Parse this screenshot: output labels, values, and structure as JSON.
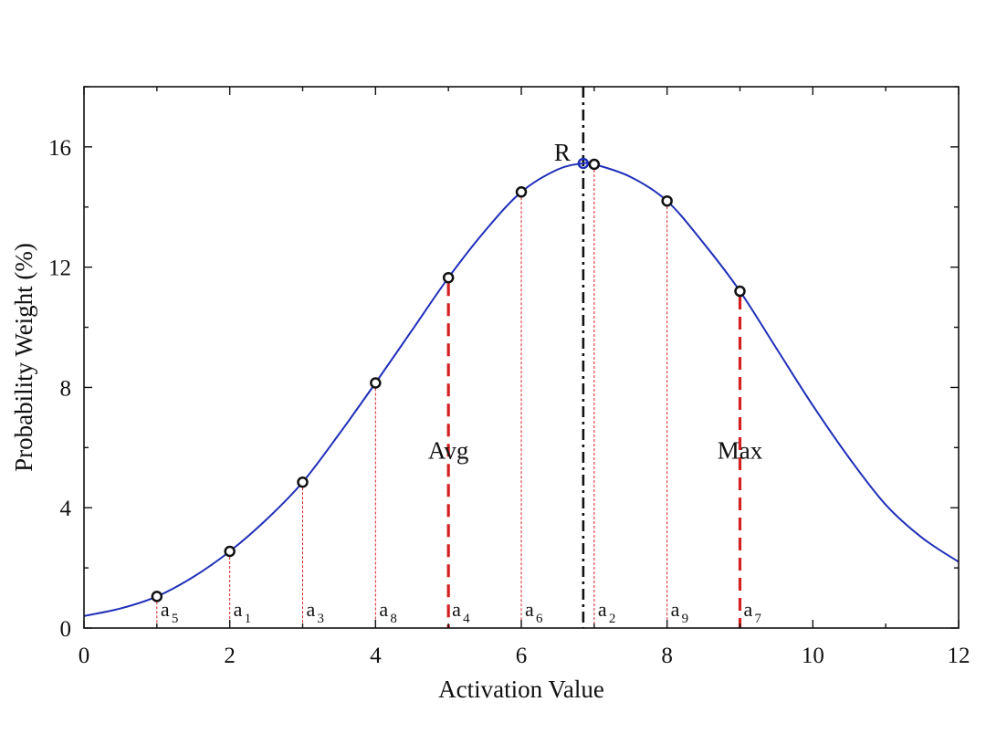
{
  "chart_data": {
    "type": "line",
    "title": "",
    "xlabel": "Activation Value",
    "ylabel": "Probability Weight (%)",
    "xlim": [
      0,
      12
    ],
    "ylim": [
      0,
      18
    ],
    "x_ticks": [
      "0",
      "2",
      "4",
      "6",
      "8",
      "10",
      "12"
    ],
    "y_ticks": [
      "0",
      "4",
      "8",
      "12",
      "16"
    ],
    "grid": false,
    "legend": "none",
    "colors": {
      "curve": "#1f2fb8",
      "markers": "#111111",
      "drop_lines": "#d42020",
      "reference_line": "#111111",
      "peak_marker": "#1f2fb8"
    },
    "curve": {
      "x": [
        0,
        0.5,
        1,
        1.5,
        2,
        2.5,
        3,
        3.5,
        4,
        4.5,
        5,
        5.5,
        6,
        6.5,
        6.85,
        7,
        7.5,
        8,
        8.5,
        9,
        9.5,
        10,
        10.5,
        11,
        11.5,
        12
      ],
      "y": [
        0.4,
        0.65,
        1.05,
        1.7,
        2.55,
        3.6,
        4.85,
        6.45,
        8.15,
        9.9,
        11.65,
        13.2,
        14.5,
        15.25,
        15.45,
        15.42,
        15.0,
        14.2,
        12.8,
        11.2,
        9.3,
        7.4,
        5.65,
        4.1,
        3.0,
        2.2
      ]
    },
    "points": [
      {
        "x": 1,
        "y": 1.05,
        "label": "a",
        "index": "5",
        "emphasis": false
      },
      {
        "x": 2,
        "y": 2.55,
        "label": "a",
        "index": "1",
        "emphasis": false
      },
      {
        "x": 3,
        "y": 4.85,
        "label": "a",
        "index": "3",
        "emphasis": false
      },
      {
        "x": 4,
        "y": 8.15,
        "label": "a",
        "index": "8",
        "emphasis": false
      },
      {
        "x": 5,
        "y": 11.65,
        "label": "a",
        "index": "4",
        "emphasis": true
      },
      {
        "x": 6,
        "y": 14.5,
        "label": "a",
        "index": "6",
        "emphasis": false
      },
      {
        "x": 7,
        "y": 15.42,
        "label": "a",
        "index": "2",
        "emphasis": false
      },
      {
        "x": 8,
        "y": 14.2,
        "label": "a",
        "index": "9",
        "emphasis": false
      },
      {
        "x": 9,
        "y": 11.2,
        "label": "a",
        "index": "7",
        "emphasis": true
      }
    ],
    "reference_line": {
      "x": 6.85,
      "peak_y": 15.45,
      "label": "R"
    },
    "annotations": [
      {
        "text": "Avg",
        "x": 5,
        "y": 5.9
      },
      {
        "text": "Max",
        "x": 9,
        "y": 5.9
      }
    ]
  }
}
